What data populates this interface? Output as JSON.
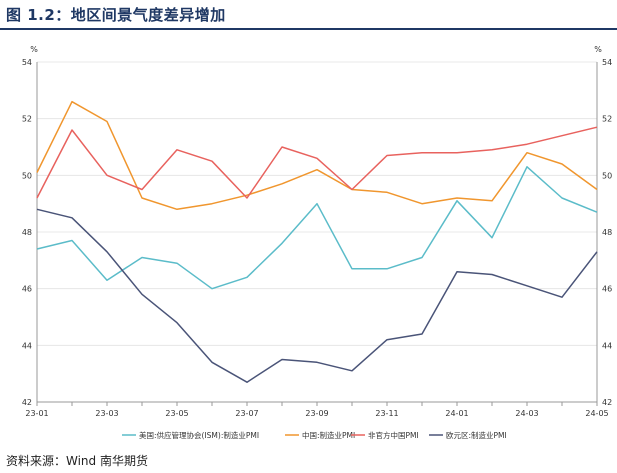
{
  "title": "图 1.2：地区间景气度差异增加",
  "source": "资料来源：Wind 南华期货",
  "chart_data": {
    "type": "line",
    "y_unit_left": "%",
    "y_unit_right": "%",
    "ylim": [
      42,
      54
    ],
    "yticks": [
      42,
      44,
      46,
      48,
      50,
      52,
      54
    ],
    "x": [
      "23-01",
      "23-02",
      "23-03",
      "23-04",
      "23-05",
      "23-06",
      "23-07",
      "23-08",
      "23-09",
      "23-10",
      "23-11",
      "23-12",
      "24-01",
      "24-02",
      "24-03",
      "24-04",
      "24-05"
    ],
    "xtick_labels": [
      "23-01",
      "23-03",
      "23-05",
      "23-07",
      "23-09",
      "23-11",
      "24-01",
      "24-03",
      "24-05"
    ],
    "grid": true,
    "legend_position": "bottom",
    "series": [
      {
        "name": "美国:供应管理协会(ISM):制造业PMI",
        "color": "#5bbcc9",
        "values": [
          47.4,
          47.7,
          46.3,
          47.1,
          46.9,
          46.0,
          46.4,
          47.6,
          49.0,
          46.7,
          46.7,
          47.1,
          49.1,
          47.8,
          50.3,
          49.2,
          48.7
        ]
      },
      {
        "name": "中国:制造业PMI",
        "color": "#f0962e",
        "values": [
          50.1,
          52.6,
          51.9,
          49.2,
          48.8,
          49.0,
          49.3,
          49.7,
          50.2,
          49.5,
          49.4,
          49.0,
          49.2,
          49.1,
          50.8,
          50.4,
          49.5
        ]
      },
      {
        "name": "非官方中国PMI",
        "color": "#e8625e",
        "values": [
          49.2,
          51.6,
          50.0,
          49.5,
          50.9,
          50.5,
          49.2,
          51.0,
          50.6,
          49.5,
          50.7,
          50.8,
          50.8,
          50.9,
          51.1,
          51.4,
          51.7
        ]
      },
      {
        "name": "欧元区:制造业PMI",
        "color": "#4a5478",
        "values": [
          48.8,
          48.5,
          47.3,
          45.8,
          44.8,
          43.4,
          42.7,
          43.5,
          43.4,
          43.1,
          44.2,
          44.4,
          46.6,
          46.5,
          46.1,
          45.7,
          47.3
        ]
      }
    ]
  }
}
